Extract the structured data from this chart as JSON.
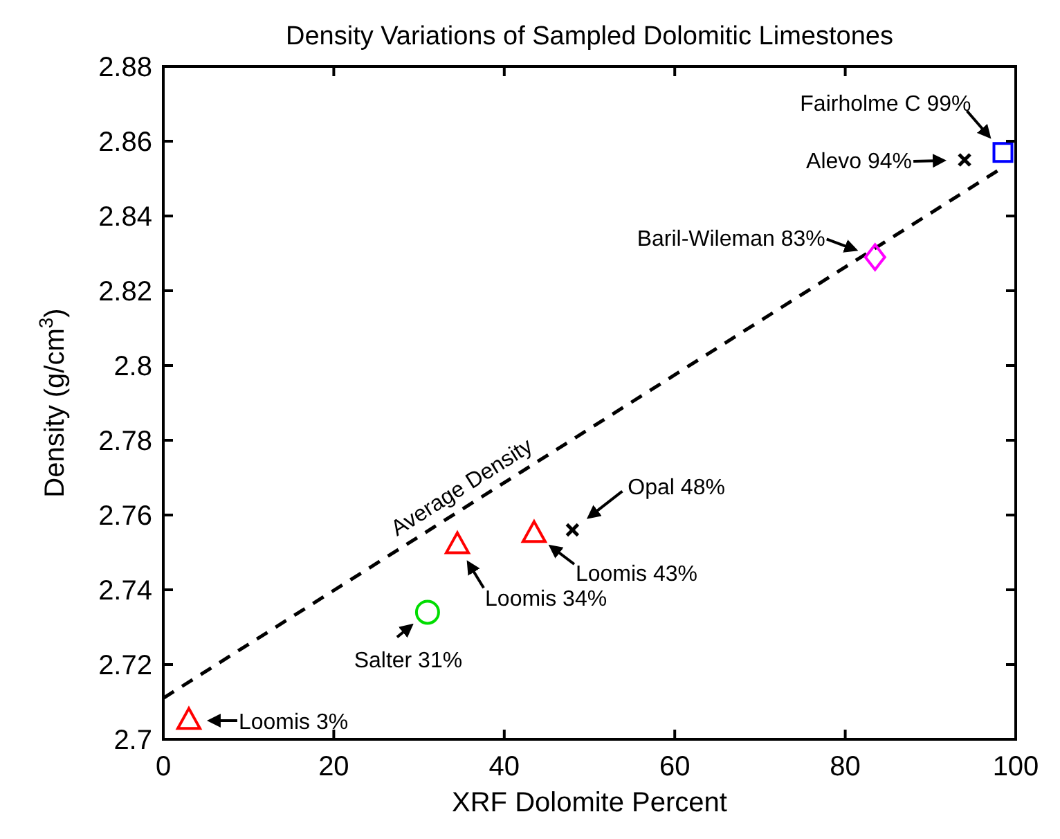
{
  "chart_data": {
    "type": "scatter",
    "title": "Density Variations of Sampled Dolomitic Limestones",
    "xlabel": "XRF Dolomite Percent",
    "ylabel": "Density (g/cm$^{3}$)",
    "xlim": [
      0,
      100
    ],
    "xticks": [
      0,
      20,
      40,
      60,
      80,
      100
    ],
    "ylim": [
      2.7,
      2.88
    ],
    "yticks": [
      2.7,
      2.72,
      2.74,
      2.76,
      2.78,
      2.8,
      2.82,
      2.84,
      2.86,
      2.88
    ],
    "grid": false,
    "series": [
      {
        "type": "line",
        "name": "Average Density",
        "color": "#000000",
        "line_style": "dashed",
        "marker": "none",
        "x": [
          0,
          98.5
        ],
        "values": [
          2.711,
          2.853
        ]
      },
      {
        "color": "#ff0000",
        "marker": "triangle",
        "x": [
          3,
          34.5,
          43.5
        ],
        "values": [
          2.705,
          2.752,
          2.755
        ]
      },
      {
        "color": "#00dd00",
        "marker": "circle",
        "x": [
          31
        ],
        "values": [
          2.734
        ]
      },
      {
        "color": "#000000",
        "marker": "cross",
        "x": [
          48,
          94
        ],
        "values": [
          2.756,
          2.855
        ]
      },
      {
        "color": "#ff00ff",
        "marker": "diamond",
        "x": [
          83.5
        ],
        "values": [
          2.829
        ]
      },
      {
        "color": "#0000ff",
        "marker": "square",
        "x": [
          98.5
        ],
        "values": [
          2.857
        ]
      }
    ],
    "annotations": [
      {
        "text": "Loomis 3%",
        "x": 3,
        "y": 2.705
      },
      {
        "text": "Salter 31%",
        "x": 31,
        "y": 2.734
      },
      {
        "text": "Loomis 34%",
        "x": 34.5,
        "y": 2.752
      },
      {
        "text": "Loomis 43%",
        "x": 43.5,
        "y": 2.755
      },
      {
        "text": "Opal 48%",
        "x": 48,
        "y": 2.756
      },
      {
        "text": "Baril-Wileman 83%",
        "x": 83.5,
        "y": 2.829
      },
      {
        "text": "Alevo 94%",
        "x": 94,
        "y": 2.855
      },
      {
        "text": "Fairholme C 99%",
        "x": 98.5,
        "y": 2.857
      }
    ]
  }
}
